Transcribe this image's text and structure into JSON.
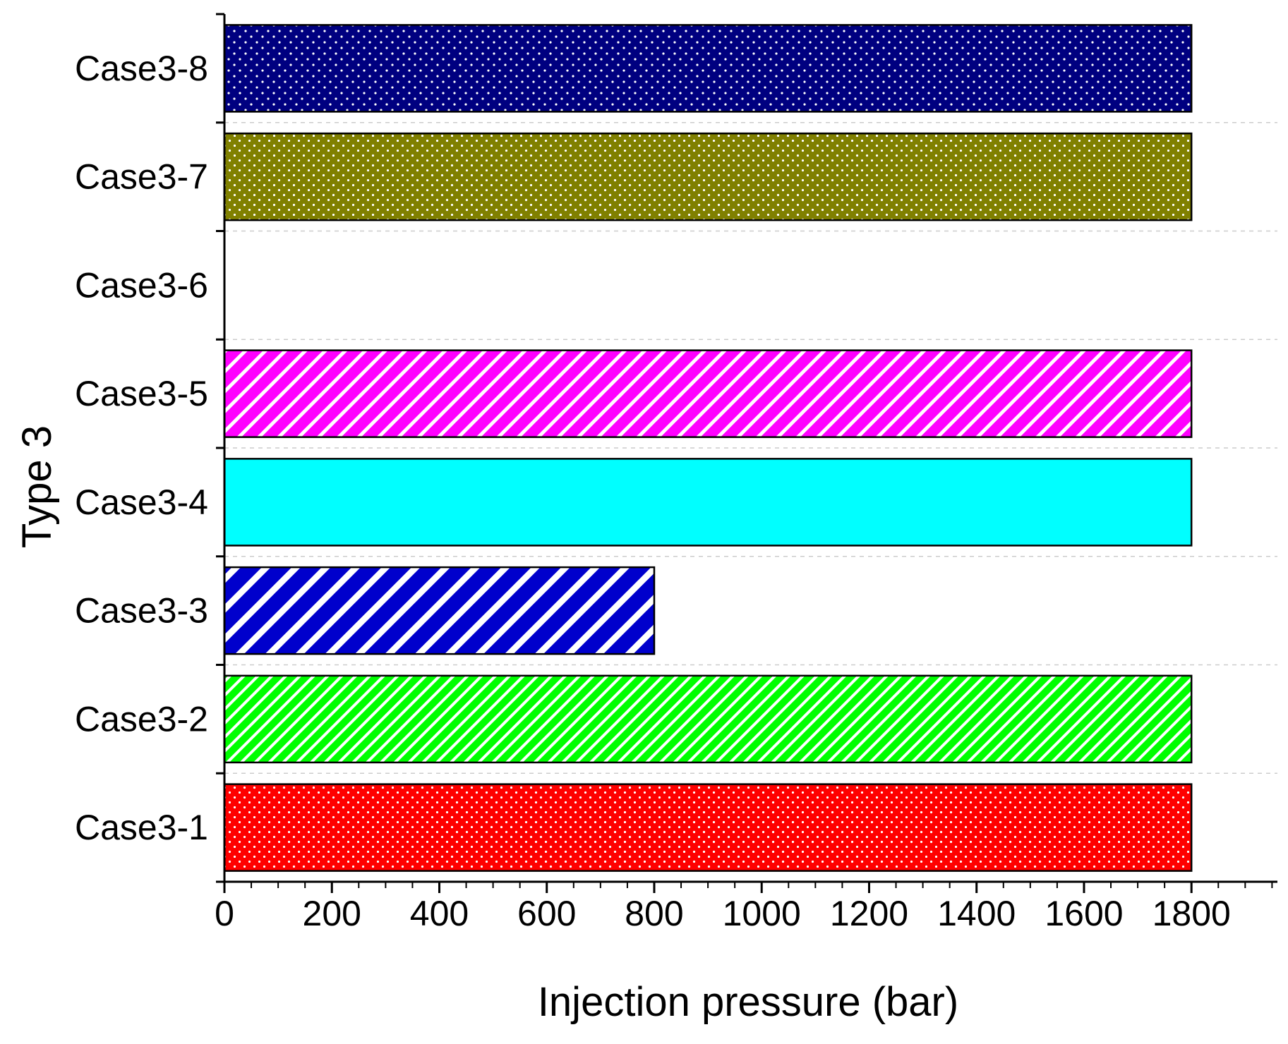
{
  "chart_data": {
    "type": "bar",
    "orientation": "horizontal",
    "categories": [
      "Case3-1",
      "Case3-2",
      "Case3-3",
      "Case3-4",
      "Case3-5",
      "Case3-6",
      "Case3-7",
      "Case3-8"
    ],
    "values": [
      1800,
      1800,
      800,
      1800,
      1800,
      null,
      1800,
      1800
    ],
    "colors": [
      "#ff0000",
      "#00ff00",
      "#0000cc",
      "#00ffff",
      "#ff00ff",
      "#ffffff",
      "#808000",
      "#000080"
    ],
    "patterns": [
      "dots-fine",
      "hatch-diag-dense",
      "hatch-diag-wide",
      "solid",
      "hatch-diag",
      "none",
      "dots-fine",
      "dots"
    ],
    "title": "",
    "xlabel": "Injection pressure (bar)",
    "ylabel": "Type 3",
    "xlim": [
      0,
      1960
    ],
    "xticks": [
      0,
      200,
      400,
      600,
      800,
      1000,
      1200,
      1400,
      1600,
      1800
    ],
    "xtick_labels": [
      "0",
      "200",
      "400",
      "600",
      "800",
      "1000",
      "1200",
      "1400",
      "1600",
      "1800"
    ],
    "grid": "horizontal-dashed",
    "legend": "none"
  }
}
